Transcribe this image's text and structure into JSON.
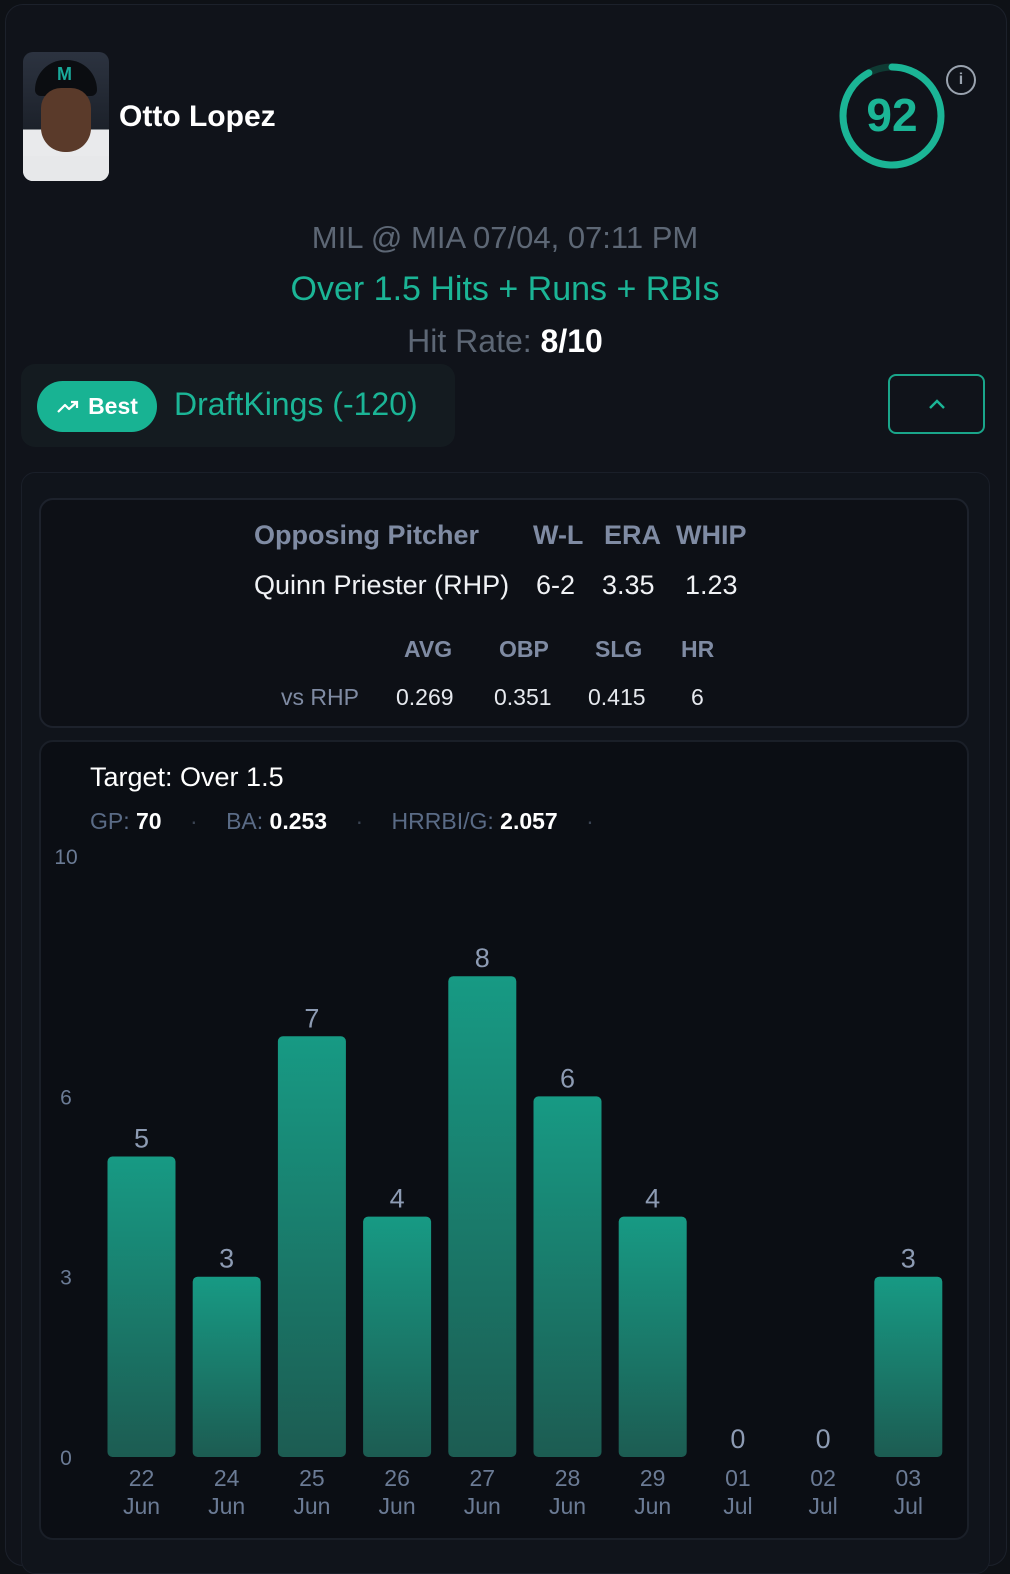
{
  "player": {
    "name": "Otto Lopez",
    "avatar_icon": "player-headshot"
  },
  "score": {
    "value": "92",
    "max": 100,
    "ring_color": "#1bb596"
  },
  "game": {
    "matchup": "MIL @ MIA 07/04, 07:11 PM"
  },
  "prop": {
    "label": "Over 1.5 Hits + Runs + RBIs",
    "hit_rate_label": "Hit Rate:",
    "hit_rate_value": "8/10"
  },
  "sportsbook": {
    "badge_label": "Best",
    "badge_icon": "trending-up-icon",
    "name": "DraftKings (-120)",
    "collapse_icon": "chevron-up-icon"
  },
  "pitcher": {
    "header": {
      "name": "Opposing Pitcher",
      "wl": "W-L",
      "era": "ERA",
      "whip": "WHIP"
    },
    "row": {
      "name": "Quinn Priester (RHP)",
      "wl": "6-2",
      "era": "3.35",
      "whip": "1.23"
    },
    "split_headers": {
      "avg": "AVG",
      "obp": "OBP",
      "slg": "SLG",
      "hr": "HR"
    },
    "split_row": {
      "label": "vs RHP",
      "avg": "0.269",
      "obp": "0.351",
      "slg": "0.415",
      "hr": "6"
    }
  },
  "summary": {
    "target": "Target: Over 1.5",
    "gp_label": "GP:",
    "gp_value": "70",
    "ba_label": "BA:",
    "ba_value": "0.253",
    "hrrbi_label": "HRRBI/G:",
    "hrrbi_value": "2.057"
  },
  "colors": {
    "accent": "#1bb596",
    "bar_top": "#179a84",
    "bar_bottom": "#1c5c52"
  },
  "chart_data": {
    "type": "bar",
    "categories": [
      "22 Jun",
      "24 Jun",
      "25 Jun",
      "26 Jun",
      "27 Jun",
      "28 Jun",
      "29 Jun",
      "01 Jul",
      "02 Jul",
      "03 Jul"
    ],
    "values": [
      5,
      3,
      7,
      4,
      8,
      6,
      4,
      0,
      0,
      3
    ],
    "y_ticks": [
      0,
      3,
      6,
      10
    ],
    "ylim": [
      0,
      10
    ]
  }
}
